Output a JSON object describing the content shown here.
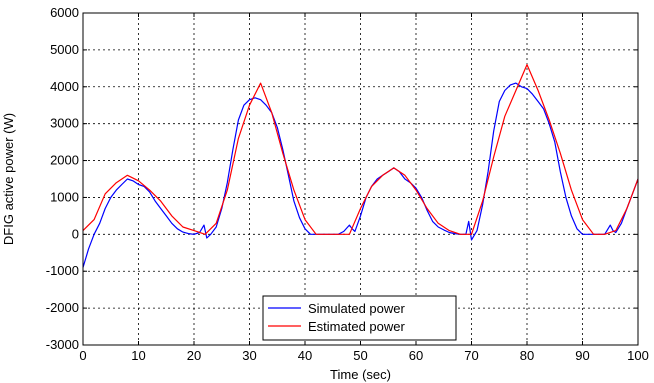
{
  "chart_data": {
    "type": "line",
    "title": "",
    "xlabel": "Time (sec)",
    "ylabel": "DFIG active power (W)",
    "xlim": [
      0,
      100
    ],
    "ylim": [
      -3000,
      6000
    ],
    "xticks": [
      0,
      10,
      20,
      30,
      40,
      50,
      60,
      70,
      80,
      90,
      100
    ],
    "yticks": [
      -3000,
      -2000,
      -1000,
      0,
      1000,
      2000,
      3000,
      4000,
      5000,
      6000
    ],
    "grid": true,
    "grid_style": "dotted",
    "legend_position": "bottom-center",
    "series": [
      {
        "name": "Simulated power",
        "color": "#0000ff",
        "x": [
          0,
          1,
          2,
          3,
          4,
          5,
          6,
          7,
          8,
          9,
          10,
          11,
          12,
          13,
          14,
          15,
          16,
          17,
          18,
          19,
          20,
          21,
          21.8,
          22.3,
          23,
          24,
          25,
          26,
          27,
          28,
          29,
          30,
          31,
          32,
          33,
          34,
          35,
          36,
          37,
          38,
          39,
          40,
          41,
          42,
          43,
          44,
          45,
          46,
          47,
          48,
          48.5,
          49,
          50,
          51,
          52,
          53,
          54,
          55,
          56,
          57,
          58,
          59,
          60,
          61,
          62,
          63,
          64,
          65,
          66,
          67,
          68,
          69,
          69.5,
          70,
          71,
          72,
          73,
          74,
          75,
          76,
          77,
          78,
          79,
          80,
          81,
          82,
          83,
          84,
          85,
          86,
          87,
          88,
          89,
          90,
          91,
          92,
          93,
          94,
          95,
          95.5,
          96,
          97,
          98,
          99,
          100
        ],
        "y": [
          -900,
          -400,
          0,
          300,
          700,
          1000,
          1200,
          1350,
          1500,
          1450,
          1350,
          1300,
          1150,
          900,
          700,
          500,
          300,
          150,
          60,
          20,
          0,
          50,
          250,
          -100,
          0,
          200,
          700,
          1400,
          2300,
          3100,
          3500,
          3650,
          3700,
          3650,
          3500,
          3300,
          2900,
          2300,
          1600,
          900,
          450,
          150,
          0,
          0,
          0,
          0,
          0,
          0,
          80,
          250,
          150,
          80,
          500,
          1000,
          1300,
          1500,
          1600,
          1700,
          1800,
          1700,
          1500,
          1400,
          1250,
          1000,
          650,
          350,
          200,
          120,
          50,
          20,
          0,
          0,
          350,
          -150,
          100,
          800,
          1700,
          2800,
          3600,
          3900,
          4050,
          4100,
          4000,
          3950,
          3800,
          3600,
          3400,
          3000,
          2500,
          1700,
          1000,
          500,
          150,
          0,
          0,
          0,
          0,
          0,
          250,
          100,
          50,
          300,
          700,
          1100,
          1500
        ]
      },
      {
        "name": "Estimated power",
        "color": "#ff0000",
        "x": [
          0,
          2,
          4,
          6,
          8,
          10,
          12,
          14,
          16,
          18,
          20,
          22,
          24,
          26,
          28,
          30,
          32,
          34,
          36,
          38,
          40,
          42,
          44,
          46,
          48,
          50,
          52,
          54,
          56,
          58,
          60,
          62,
          64,
          66,
          68,
          70,
          72,
          74,
          76,
          78,
          80,
          82,
          84,
          86,
          88,
          90,
          92,
          94,
          96,
          98,
          100
        ],
        "y": [
          100,
          400,
          1100,
          1400,
          1600,
          1450,
          1200,
          900,
          500,
          200,
          100,
          0,
          300,
          1200,
          2600,
          3500,
          4100,
          3300,
          2200,
          1200,
          400,
          0,
          0,
          0,
          0,
          700,
          1300,
          1600,
          1800,
          1600,
          1200,
          700,
          300,
          100,
          0,
          0,
          900,
          2100,
          3200,
          3900,
          4600,
          3900,
          3100,
          2200,
          1200,
          400,
          0,
          0,
          100,
          700,
          1500
        ]
      }
    ]
  }
}
